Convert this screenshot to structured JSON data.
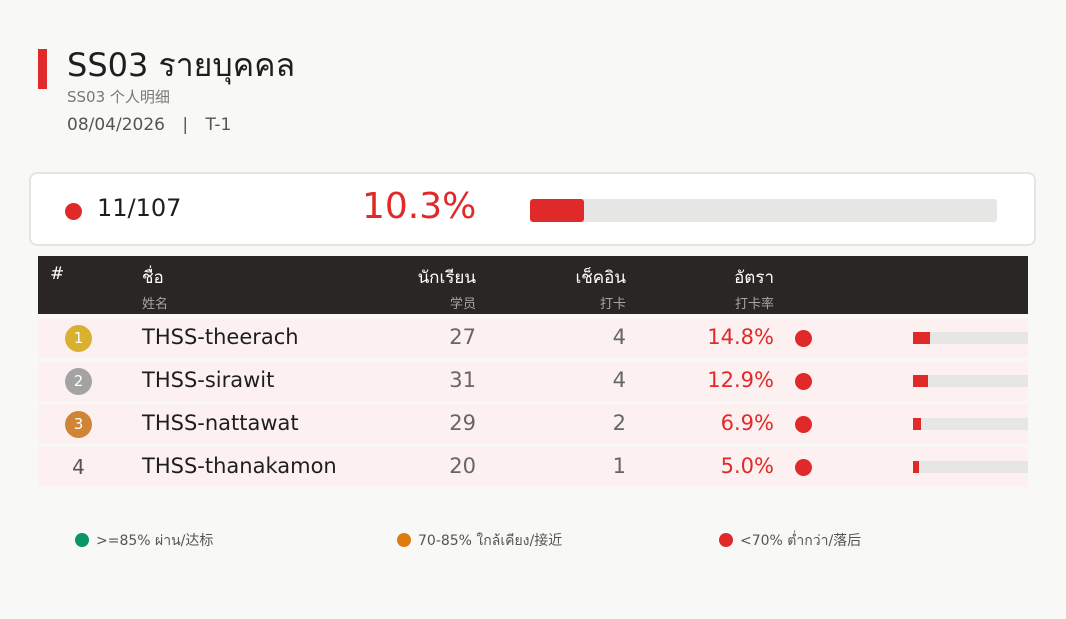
{
  "header": {
    "title": "SS03  รายบุคคล",
    "subtitle": "SS03  个人明细",
    "date": "08/04/2026",
    "separator": "|",
    "period": "T-1",
    "accent_color": "#e02a2a"
  },
  "summary": {
    "count": "11/107",
    "percent": "10.3%",
    "progress": 0.103,
    "status_color": "#e02a2a"
  },
  "table": {
    "columns": {
      "rank": "#",
      "name_th": "ชื่อ",
      "name_zh": "姓名",
      "students_th": "นักเรียน",
      "students_zh": "学员",
      "checkin_th": "เช็คอิน",
      "checkin_zh": "打卡",
      "rate_th": "อัตรา",
      "rate_zh": "打卡率"
    },
    "rows": [
      {
        "rank": "1",
        "name": "THSS-theerach",
        "students": "27",
        "checkins": "4",
        "rate": "14.8%",
        "fraction": 0.148,
        "badge_color": "#d9b030"
      },
      {
        "rank": "2",
        "name": "THSS-sirawit",
        "students": "31",
        "checkins": "4",
        "rate": "12.9%",
        "fraction": 0.129,
        "badge_color": "#a3a3a3"
      },
      {
        "rank": "3",
        "name": "THSS-nattawat",
        "students": "29",
        "checkins": "2",
        "rate": "6.9%",
        "fraction": 0.069,
        "badge_color": "#d08436"
      },
      {
        "rank": "4",
        "name": "THSS-thanakamon",
        "students": "20",
        "checkins": "1",
        "rate": "5.0%",
        "fraction": 0.05,
        "badge_color": ""
      }
    ]
  },
  "legend": [
    {
      "label": ">=85% ผ่าน/达标",
      "color": "#0d9467"
    },
    {
      "label": "70-85% ใกล้เคียง/接近",
      "color": "#de7a12"
    },
    {
      "label": "<70% ต่ำกว่า/落后",
      "color": "#e02a2a"
    }
  ]
}
